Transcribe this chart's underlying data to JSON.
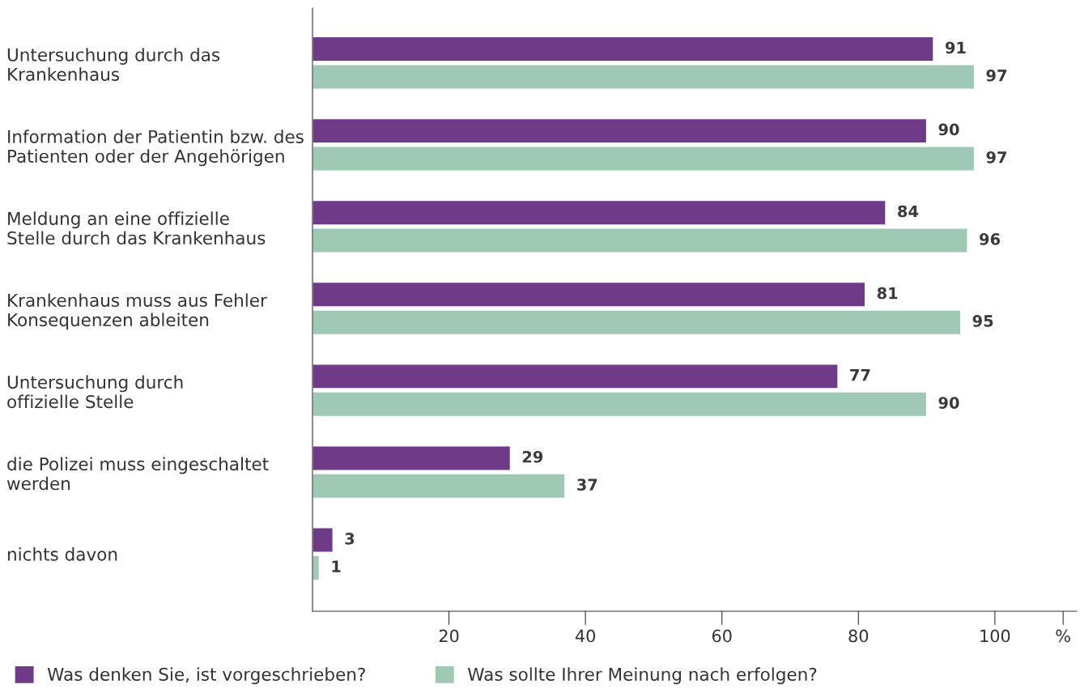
{
  "chart_data": {
    "type": "bar",
    "orientation": "horizontal",
    "categories": [
      "Untersuchung durch das\nKrankenhaus",
      "Information der Patientin bzw. des\nPatienten oder der Angehörigen",
      "Meldung an eine offizielle\nStelle durch das Krankenhaus",
      "Krankenhaus muss aus Fehler\nKonsequenzen ableiten",
      "Untersuchung durch\noffizielle Stelle",
      "die Polizei muss eingeschaltet\nwerden",
      "nichts davon"
    ],
    "series": [
      {
        "name": "Was denken Sie, ist vorgeschrieben?",
        "color": "#6f3a87",
        "values": [
          91,
          90,
          84,
          81,
          77,
          29,
          3
        ]
      },
      {
        "name": "Was sollte Ihrer Meinung nach erfolgen?",
        "color": "#9fc9b4",
        "values": [
          97,
          97,
          96,
          95,
          90,
          37,
          1
        ]
      }
    ],
    "xlim": [
      0,
      112
    ],
    "xticks": [
      20,
      40,
      60,
      80,
      100,
      {
        "value": 110,
        "label": "%"
      }
    ],
    "data_labels": true,
    "grid": false,
    "legend": "bottom"
  }
}
